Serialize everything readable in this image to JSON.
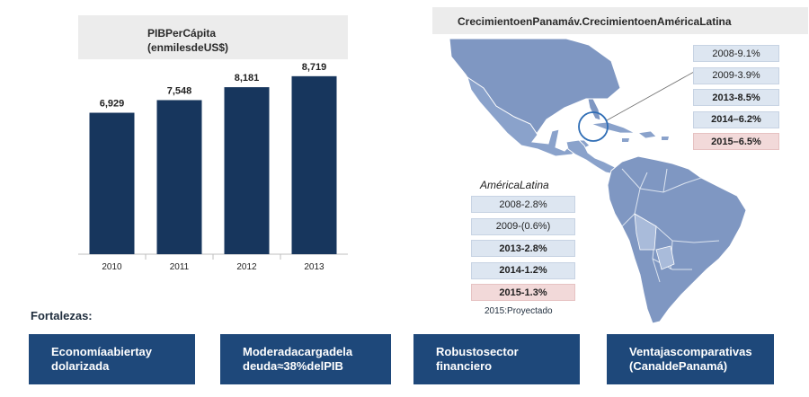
{
  "chart_title": {
    "line1": "PIBPerCápita",
    "line2": "(enmilesdeUS$)"
  },
  "chart_data": {
    "type": "bar",
    "title": "PIBPerCápita (enmilesdeUS$)",
    "categories": [
      "2010",
      "2011",
      "2012",
      "2013"
    ],
    "values": [
      6929,
      7548,
      8181,
      8719
    ],
    "value_labels": [
      "6,929",
      "7,548",
      "8,181",
      "8,719"
    ],
    "xlabel": "",
    "ylabel": "",
    "ylim": [
      0,
      11000
    ],
    "grid": false,
    "bar_color": "#17365d"
  },
  "map": {
    "title": "CrecimientoenPanamáv.CrecimientoenAméricaLatina",
    "panama_stats": [
      {
        "label": "2008-9.1%",
        "bold": false,
        "highlight": false
      },
      {
        "label": "2009-3.9%",
        "bold": false,
        "highlight": false
      },
      {
        "label": "2013-8.5%",
        "bold": true,
        "highlight": false
      },
      {
        "label": "2014–6.2%",
        "bold": true,
        "highlight": false
      },
      {
        "label": "2015–6.5%",
        "bold": true,
        "highlight": true
      }
    ],
    "latam_label": "AméricaLatina",
    "latam_stats": [
      {
        "label": "2008-2.8%",
        "bold": false,
        "highlight": false
      },
      {
        "label": "2009-(0.6%)",
        "bold": false,
        "highlight": false
      },
      {
        "label": "2013-2.8%",
        "bold": true,
        "highlight": false
      },
      {
        "label": "2014-1.2%",
        "bold": true,
        "highlight": false
      },
      {
        "label": "2015-1.3%",
        "bold": true,
        "highlight": true
      }
    ],
    "projection_note": "2015:Proyectado"
  },
  "strengths": {
    "heading": "Fortalezas:",
    "items": [
      {
        "line1": "Economíaabiertay",
        "line2": "dolarizada"
      },
      {
        "line1": "Moderadacargadela",
        "line2": "deuda≈38%delPIB"
      },
      {
        "line1": "Robustosector",
        "line2": "financiero"
      },
      {
        "line1": "Ventajascomparativas",
        "line2": "(CanaldePanamá)"
      }
    ]
  },
  "colors": {
    "bar": "#17365d",
    "strength_box": "#1e487a",
    "map_fill": "#7f97c2",
    "stat_box": "#dde6f1",
    "highlight_box": "#f2d9d9"
  }
}
